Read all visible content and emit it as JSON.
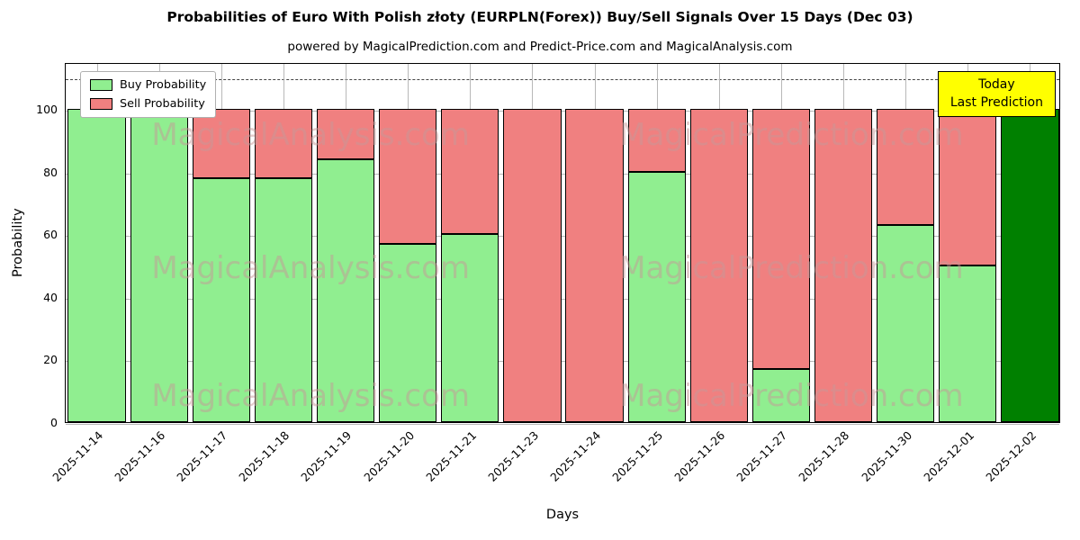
{
  "chart_data": {
    "type": "bar",
    "stacked": true,
    "title": "Probabilities of Euro With Polish złoty (EURPLN(Forex)) Buy/Sell Signals Over 15 Days (Dec 03)",
    "subtitle": "powered by MagicalPrediction.com and Predict-Price.com and MagicalAnalysis.com",
    "xlabel": "Days",
    "ylabel": "Probability",
    "ylim": [
      0,
      115
    ],
    "yticks": [
      0,
      20,
      40,
      60,
      80,
      100
    ],
    "grid": true,
    "dashed_line_y": 110,
    "categories": [
      "2025-11-14",
      "2025-11-16",
      "2025-11-17",
      "2025-11-18",
      "2025-11-19",
      "2025-11-20",
      "2025-11-21",
      "2025-11-23",
      "2025-11-24",
      "2025-11-25",
      "2025-11-26",
      "2025-11-27",
      "2025-11-28",
      "2025-11-30",
      "2025-12-01",
      "2025-12-02"
    ],
    "series": [
      {
        "name": "Buy Probability",
        "color": "#90EE90",
        "values": [
          100,
          100,
          78,
          78,
          84,
          57,
          60,
          0,
          0,
          80,
          0,
          17,
          0,
          63,
          50,
          100
        ]
      },
      {
        "name": "Sell Probability",
        "color": "#F08080",
        "values": [
          0,
          0,
          22,
          22,
          16,
          43,
          40,
          100,
          100,
          20,
          100,
          83,
          100,
          37,
          50,
          0
        ]
      }
    ],
    "today_bar": {
      "category": "2025-12-02",
      "index": 15,
      "color": "#008000"
    },
    "legend": {
      "position": "upper left",
      "entries": [
        {
          "label": "Buy Probability",
          "color": "#90EE90"
        },
        {
          "label": "Sell Probability",
          "color": "#F08080"
        }
      ]
    },
    "annotation": {
      "line1": "Today",
      "line2": "Last Prediction",
      "bg_color": "#FFFF00"
    },
    "watermarks": {
      "texts": [
        "MagicalAnalysis.com",
        "MagicalPrediction.com"
      ],
      "color": "rgba(197,152,152,0.5)"
    }
  }
}
